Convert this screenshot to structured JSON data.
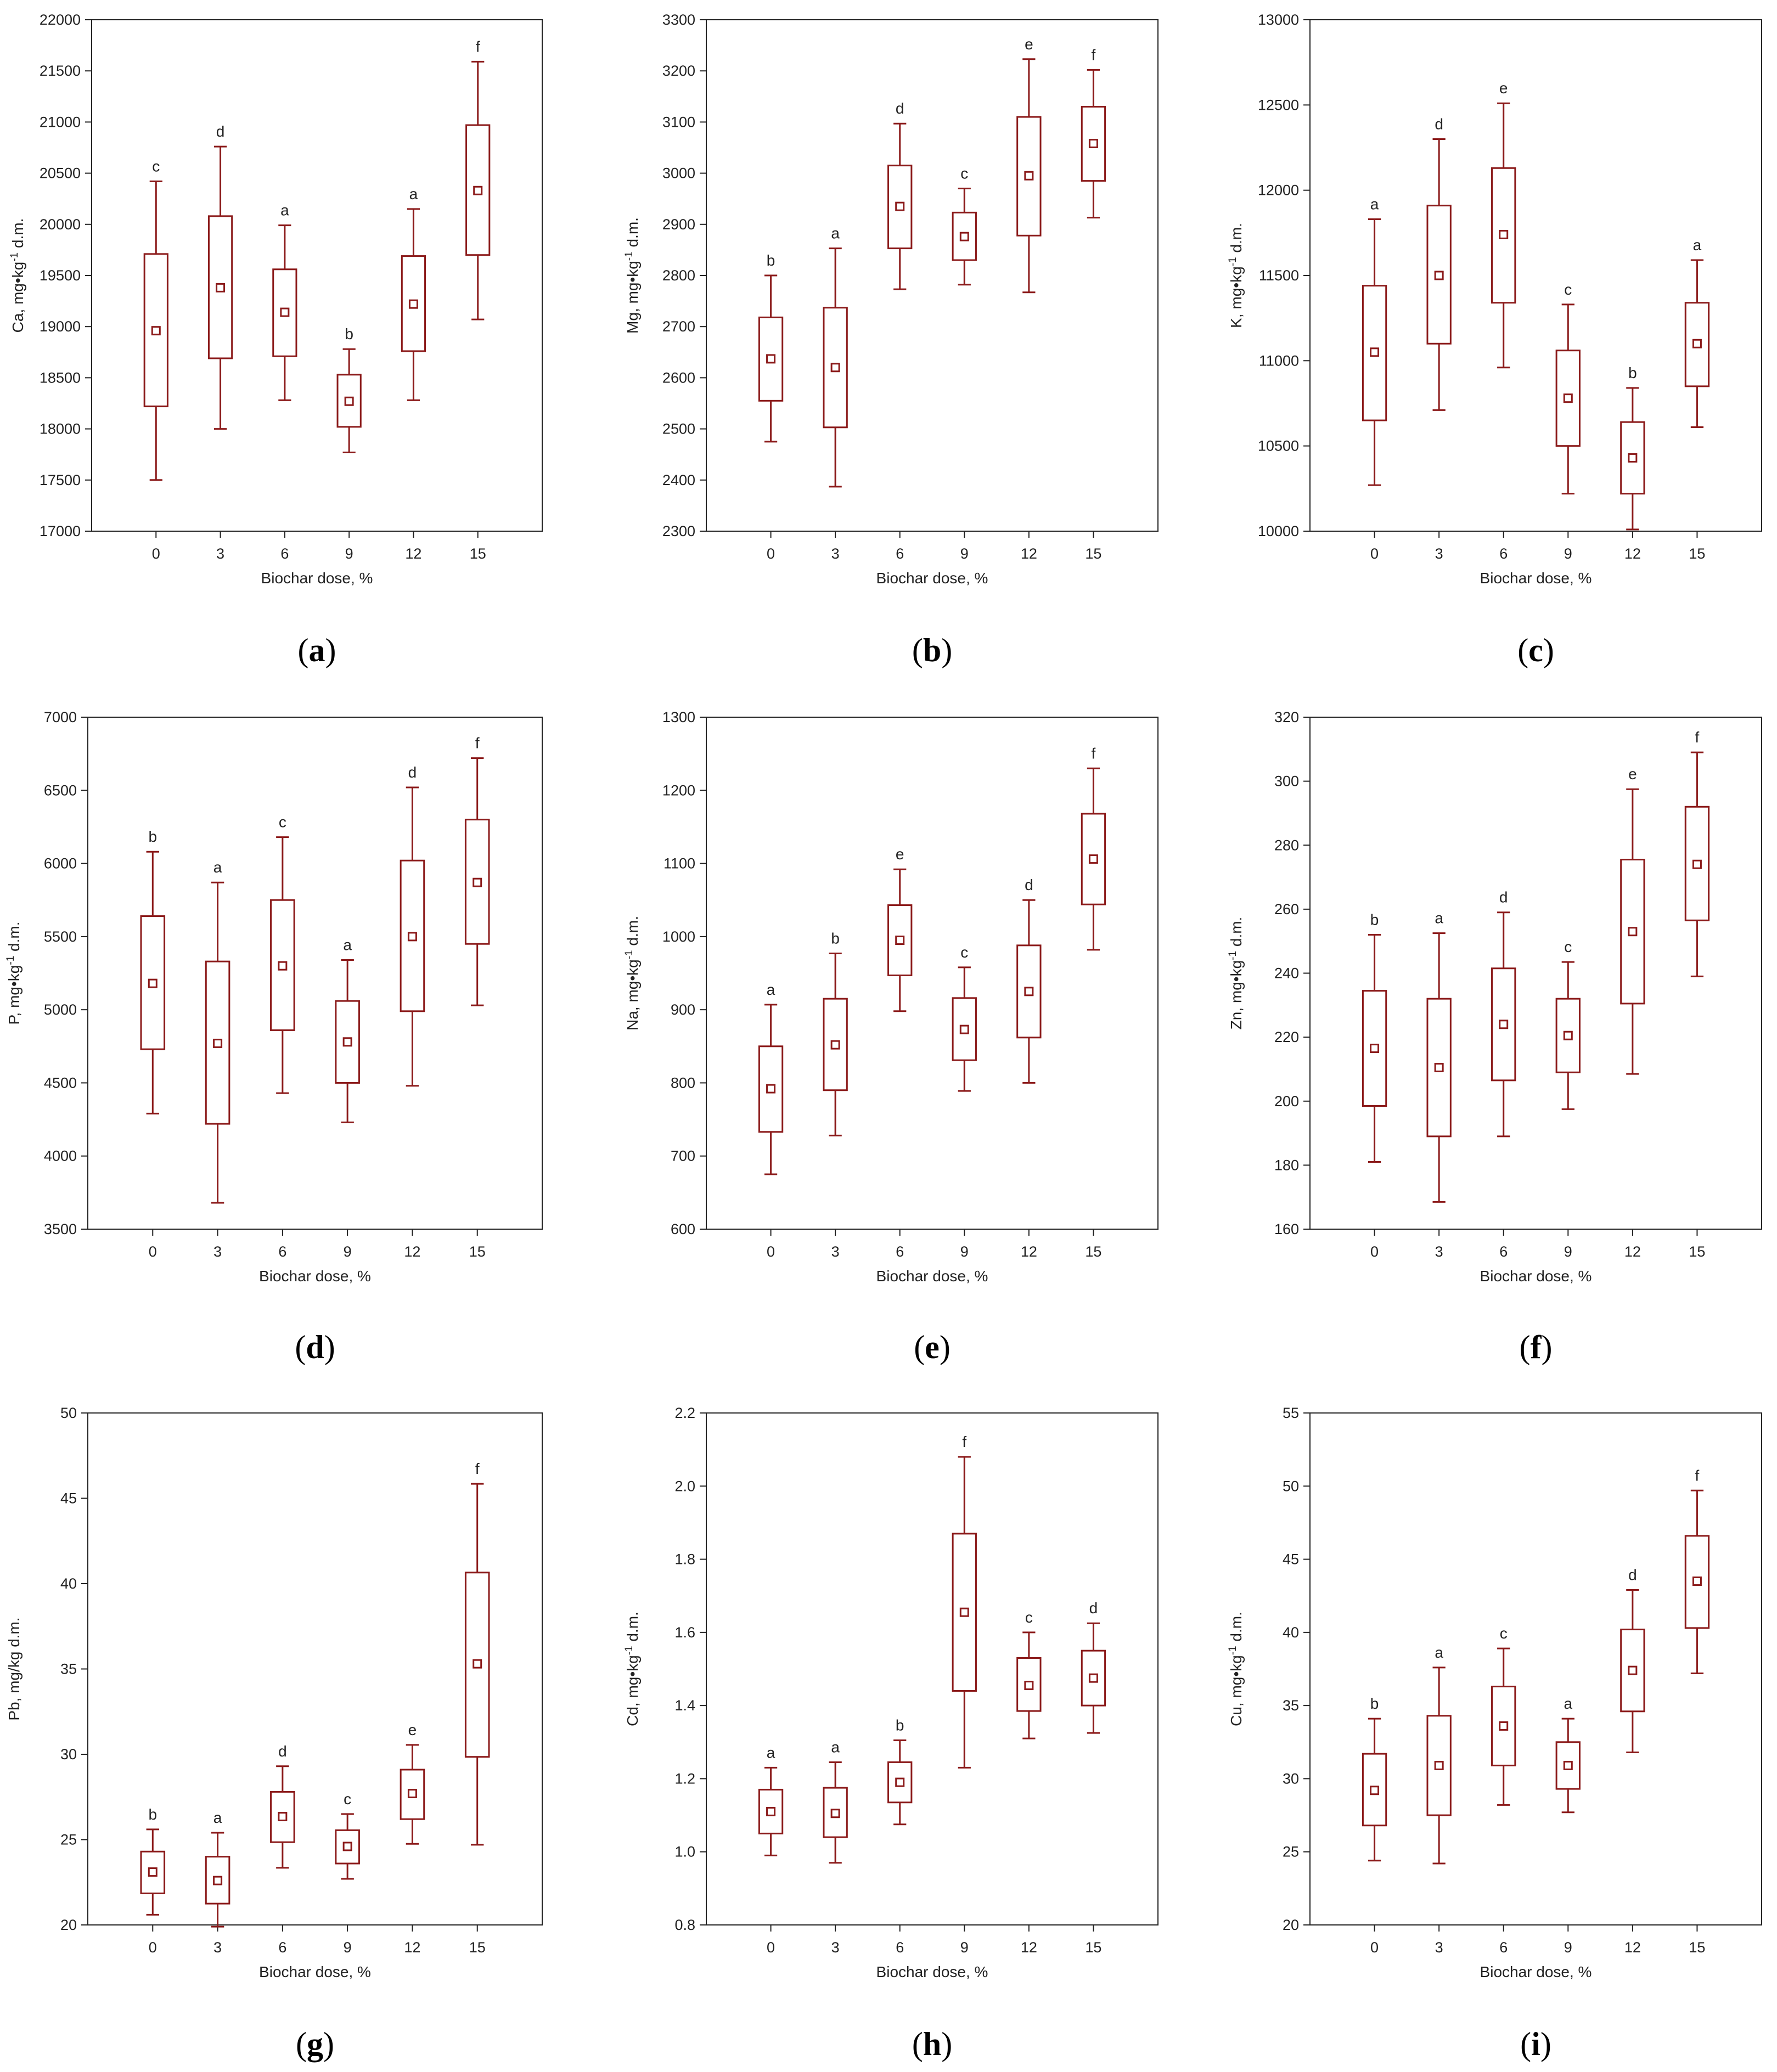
{
  "figure": {
    "colors": {
      "box": "#8b1a1a",
      "axis": "#222222",
      "background": "#ffffff"
    }
  },
  "chart_data": [
    {
      "type": "box",
      "panel_label": "a",
      "xlabel": "Biochar dose, %",
      "ylabel": "Ca, mg•kg-1 d.m.",
      "ylabel_main": "Ca, mg•kg",
      "ylabel_sup": "-1",
      "ylabel_tail": " d.m.",
      "categories": [
        "0",
        "3",
        "6",
        "9",
        "12",
        "15"
      ],
      "ylim": [
        17000,
        22000
      ],
      "yticks": [
        "17000",
        "17500",
        "18000",
        "18500",
        "19000",
        "19500",
        "20000",
        "20500",
        "21000",
        "21500",
        "22000"
      ],
      "boxes": [
        {
          "min": 17500,
          "q1": 18220,
          "median": 18960,
          "q3": 19710,
          "max": 20420,
          "letter": "c"
        },
        {
          "min": 18000,
          "q1": 18690,
          "median": 19380,
          "q3": 20080,
          "max": 20760,
          "letter": "d"
        },
        {
          "min": 18280,
          "q1": 18710,
          "median": 19140,
          "q3": 19560,
          "max": 19990,
          "letter": "a"
        },
        {
          "min": 17770,
          "q1": 18020,
          "median": 18270,
          "q3": 18530,
          "max": 18780,
          "letter": "b"
        },
        {
          "min": 18280,
          "q1": 18760,
          "median": 19220,
          "q3": 19690,
          "max": 20150,
          "letter": "a"
        },
        {
          "min": 19070,
          "q1": 19700,
          "median": 20330,
          "q3": 20970,
          "max": 21590,
          "letter": "f"
        }
      ]
    },
    {
      "type": "box",
      "panel_label": "b",
      "xlabel": "Biochar dose, %",
      "ylabel": "Mg, mg•kg-1 d.m.",
      "ylabel_main": "Mg, mg•kg",
      "ylabel_sup": "-1",
      "ylabel_tail": " d.m.",
      "categories": [
        "0",
        "3",
        "6",
        "9",
        "12",
        "15"
      ],
      "ylim": [
        2300,
        3300
      ],
      "yticks": [
        "2300",
        "2400",
        "2500",
        "2600",
        "2700",
        "2800",
        "2900",
        "3000",
        "3100",
        "3200",
        "3300"
      ],
      "boxes": [
        {
          "min": 2475,
          "q1": 2555,
          "median": 2637,
          "q3": 2718,
          "max": 2800,
          "letter": "b"
        },
        {
          "min": 2387,
          "q1": 2503,
          "median": 2620,
          "q3": 2737,
          "max": 2853,
          "letter": "a"
        },
        {
          "min": 2773,
          "q1": 2853,
          "median": 2935,
          "q3": 3015,
          "max": 3097,
          "letter": "d"
        },
        {
          "min": 2782,
          "q1": 2830,
          "median": 2876,
          "q3": 2923,
          "max": 2970,
          "letter": "c"
        },
        {
          "min": 2767,
          "q1": 2878,
          "median": 2995,
          "q3": 3110,
          "max": 3223,
          "letter": "e"
        },
        {
          "min": 2913,
          "q1": 2985,
          "median": 3058,
          "q3": 3130,
          "max": 3202,
          "letter": "f"
        }
      ]
    },
    {
      "type": "box",
      "panel_label": "c",
      "xlabel": "Biochar dose, %",
      "ylabel": "K, mg•kg-1 d.m.",
      "ylabel_main": "K, mg•kg",
      "ylabel_sup": "-1",
      "ylabel_tail": " d.m.",
      "categories": [
        "0",
        "3",
        "6",
        "9",
        "12",
        "15"
      ],
      "ylim": [
        10000,
        13000
      ],
      "yticks": [
        "10000",
        "10500",
        "11000",
        "11500",
        "12000",
        "12500",
        "13000"
      ],
      "boxes": [
        {
          "min": 10270,
          "q1": 10650,
          "median": 11050,
          "q3": 11440,
          "max": 11830,
          "letter": "a"
        },
        {
          "min": 10710,
          "q1": 11100,
          "median": 11500,
          "q3": 11910,
          "max": 12300,
          "letter": "d"
        },
        {
          "min": 10960,
          "q1": 11340,
          "median": 11740,
          "q3": 12130,
          "max": 12510,
          "letter": "e"
        },
        {
          "min": 10220,
          "q1": 10500,
          "median": 10780,
          "q3": 11060,
          "max": 11330,
          "letter": "c"
        },
        {
          "min": 10010,
          "q1": 10220,
          "median": 10430,
          "q3": 10640,
          "max": 10840,
          "letter": "b"
        },
        {
          "min": 10610,
          "q1": 10850,
          "median": 11100,
          "q3": 11340,
          "max": 11590,
          "letter": "a"
        }
      ]
    },
    {
      "type": "box",
      "panel_label": "d",
      "xlabel": "Biochar dose, %",
      "ylabel": "P, mg•kg-1 d.m.",
      "ylabel_main": "P, mg•kg",
      "ylabel_sup": "-1",
      "ylabel_tail": " d.m.",
      "categories": [
        "0",
        "3",
        "6",
        "9",
        "12",
        "15"
      ],
      "ylim": [
        3500,
        7000
      ],
      "yticks": [
        "3500",
        "4000",
        "4500",
        "5000",
        "5500",
        "6000",
        "6500",
        "7000"
      ],
      "boxes": [
        {
          "min": 4290,
          "q1": 4730,
          "median": 5180,
          "q3": 5640,
          "max": 6080,
          "letter": "b"
        },
        {
          "min": 3680,
          "q1": 4220,
          "median": 4770,
          "q3": 5330,
          "max": 5870,
          "letter": "a"
        },
        {
          "min": 4430,
          "q1": 4860,
          "median": 5300,
          "q3": 5750,
          "max": 6180,
          "letter": "c"
        },
        {
          "min": 4230,
          "q1": 4500,
          "median": 4780,
          "q3": 5060,
          "max": 5340,
          "letter": "a"
        },
        {
          "min": 4480,
          "q1": 4990,
          "median": 5500,
          "q3": 6020,
          "max": 6520,
          "letter": "d"
        },
        {
          "min": 5030,
          "q1": 5450,
          "median": 5870,
          "q3": 6300,
          "max": 6720,
          "letter": "f"
        }
      ]
    },
    {
      "type": "box",
      "panel_label": "e",
      "xlabel": "Biochar dose, %",
      "ylabel": "Na, mg•kg-1 d.m.",
      "ylabel_main": "Na, mg•kg",
      "ylabel_sup": "-1",
      "ylabel_tail": " d.m.",
      "categories": [
        "0",
        "3",
        "6",
        "9",
        "12",
        "15"
      ],
      "ylim": [
        600,
        1300
      ],
      "yticks": [
        "600",
        "700",
        "800",
        "900",
        "1000",
        "1100",
        "1200",
        "1300"
      ],
      "boxes": [
        {
          "min": 675,
          "q1": 733,
          "median": 792,
          "q3": 850,
          "max": 907,
          "letter": "a"
        },
        {
          "min": 728,
          "q1": 790,
          "median": 852,
          "q3": 915,
          "max": 977,
          "letter": "b"
        },
        {
          "min": 898,
          "q1": 947,
          "median": 995,
          "q3": 1043,
          "max": 1092,
          "letter": "e"
        },
        {
          "min": 789,
          "q1": 831,
          "median": 873,
          "q3": 916,
          "max": 958,
          "letter": "c"
        },
        {
          "min": 800,
          "q1": 862,
          "median": 925,
          "q3": 988,
          "max": 1050,
          "letter": "d"
        },
        {
          "min": 982,
          "q1": 1044,
          "median": 1106,
          "q3": 1168,
          "max": 1230,
          "letter": "f"
        }
      ]
    },
    {
      "type": "box",
      "panel_label": "f",
      "xlabel": "Biochar dose, %",
      "ylabel": "Zn, mg•kg-1 d.m.",
      "ylabel_main": "Zn, mg•kg",
      "ylabel_sup": "-1",
      "ylabel_tail": " d.m.",
      "categories": [
        "0",
        "3",
        "6",
        "9",
        "12",
        "15"
      ],
      "ylim": [
        160,
        320
      ],
      "yticks": [
        "160",
        "180",
        "200",
        "220",
        "240",
        "260",
        "280",
        "300",
        "320"
      ],
      "boxes": [
        {
          "min": 181,
          "q1": 198.5,
          "median": 216.5,
          "q3": 234.5,
          "max": 252,
          "letter": "b"
        },
        {
          "min": 168.5,
          "q1": 189,
          "median": 210.5,
          "q3": 232,
          "max": 252.5,
          "letter": "a"
        },
        {
          "min": 189,
          "q1": 206.5,
          "median": 224,
          "q3": 241.5,
          "max": 259,
          "letter": "d"
        },
        {
          "min": 197.5,
          "q1": 209,
          "median": 220.5,
          "q3": 232,
          "max": 243.5,
          "letter": "c"
        },
        {
          "min": 208.5,
          "q1": 230.5,
          "median": 253,
          "q3": 275.5,
          "max": 297.5,
          "letter": "e"
        },
        {
          "min": 239,
          "q1": 256.5,
          "median": 274,
          "q3": 292,
          "max": 309,
          "letter": "f"
        }
      ]
    },
    {
      "type": "box",
      "panel_label": "g",
      "xlabel": "Biochar dose, %",
      "ylabel": "Pb, mg/kg d.m.",
      "ylabel_main": "Pb, mg/kg d.m.",
      "ylabel_sup": "",
      "ylabel_tail": "",
      "categories": [
        "0",
        "3",
        "6",
        "9",
        "12",
        "15"
      ],
      "ylim": [
        20,
        50
      ],
      "yticks": [
        "20",
        "25",
        "30",
        "35",
        "40",
        "45",
        "50"
      ],
      "boxes": [
        {
          "min": 20.6,
          "q1": 21.85,
          "median": 23.1,
          "q3": 24.3,
          "max": 25.6,
          "letter": "b"
        },
        {
          "min": 19.9,
          "q1": 21.25,
          "median": 22.6,
          "q3": 24.0,
          "max": 25.4,
          "letter": "a"
        },
        {
          "min": 23.35,
          "q1": 24.85,
          "median": 26.35,
          "q3": 27.8,
          "max": 29.3,
          "letter": "d"
        },
        {
          "min": 22.7,
          "q1": 23.6,
          "median": 24.6,
          "q3": 25.55,
          "max": 26.5,
          "letter": "c"
        },
        {
          "min": 24.75,
          "q1": 26.2,
          "median": 27.7,
          "q3": 29.1,
          "max": 30.55,
          "letter": "e"
        },
        {
          "min": 24.7,
          "q1": 29.85,
          "median": 35.3,
          "q3": 40.65,
          "max": 45.85,
          "letter": "f"
        }
      ]
    },
    {
      "type": "box",
      "panel_label": "h",
      "xlabel": "Biochar dose, %",
      "ylabel": "Cd, mg•kg-1 d.m.",
      "ylabel_main": "Cd, mg•kg",
      "ylabel_sup": "-1",
      "ylabel_tail": " d.m.",
      "categories": [
        "0",
        "3",
        "6",
        "9",
        "12",
        "15"
      ],
      "ylim": [
        0.8,
        2.2
      ],
      "yticks": [
        "0.8",
        "1.0",
        "1.2",
        "1.4",
        "1.6",
        "1.8",
        "2.0",
        "2.2"
      ],
      "boxes": [
        {
          "min": 0.99,
          "q1": 1.05,
          "median": 1.11,
          "q3": 1.17,
          "max": 1.23,
          "letter": "a"
        },
        {
          "min": 0.97,
          "q1": 1.04,
          "median": 1.105,
          "q3": 1.175,
          "max": 1.245,
          "letter": "a"
        },
        {
          "min": 1.075,
          "q1": 1.135,
          "median": 1.19,
          "q3": 1.245,
          "max": 1.305,
          "letter": "b"
        },
        {
          "min": 1.23,
          "q1": 1.44,
          "median": 1.655,
          "q3": 1.87,
          "max": 2.08,
          "letter": "f"
        },
        {
          "min": 1.31,
          "q1": 1.385,
          "median": 1.455,
          "q3": 1.53,
          "max": 1.6,
          "letter": "c"
        },
        {
          "min": 1.325,
          "q1": 1.4,
          "median": 1.475,
          "q3": 1.55,
          "max": 1.625,
          "letter": "d"
        }
      ]
    },
    {
      "type": "box",
      "panel_label": "i",
      "xlabel": "Biochar dose, %",
      "ylabel": "Cu, mg•kg-1 d.m.",
      "ylabel_main": "Cu, mg•kg",
      "ylabel_sup": "-1",
      "ylabel_tail": " d.m.",
      "categories": [
        "0",
        "3",
        "6",
        "9",
        "12",
        "15"
      ],
      "ylim": [
        20,
        55
      ],
      "yticks": [
        "20",
        "25",
        "30",
        "35",
        "40",
        "45",
        "50",
        "55"
      ],
      "boxes": [
        {
          "min": 24.4,
          "q1": 26.8,
          "median": 29.2,
          "q3": 31.7,
          "max": 34.1,
          "letter": "b"
        },
        {
          "min": 24.2,
          "q1": 27.5,
          "median": 30.9,
          "q3": 34.3,
          "max": 37.6,
          "letter": "a"
        },
        {
          "min": 28.2,
          "q1": 30.9,
          "median": 33.6,
          "q3": 36.3,
          "max": 38.9,
          "letter": "c"
        },
        {
          "min": 27.7,
          "q1": 29.3,
          "median": 30.9,
          "q3": 32.5,
          "max": 34.1,
          "letter": "a"
        },
        {
          "min": 31.8,
          "q1": 34.6,
          "median": 37.4,
          "q3": 40.2,
          "max": 42.9,
          "letter": "d"
        },
        {
          "min": 37.2,
          "q1": 40.3,
          "median": 43.5,
          "q3": 46.6,
          "max": 49.7,
          "letter": "f"
        }
      ]
    }
  ]
}
